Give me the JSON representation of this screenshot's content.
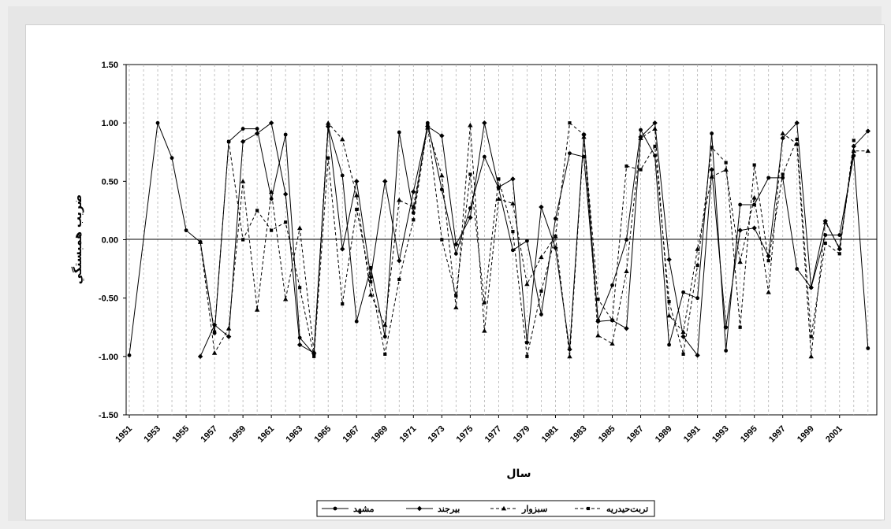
{
  "chart_data": {
    "type": "line",
    "title": "",
    "xlabel": "سال",
    "ylabel": "ضريب همبستگي",
    "xlim": [
      1951,
      2003
    ],
    "ylim": [
      -1.5,
      1.5
    ],
    "y_ticks": [
      "1.50",
      "1.00",
      "0.50",
      "0.00",
      "-0.50",
      "-1.00",
      "-1.50"
    ],
    "x_ticks": [
      "1951",
      "1953",
      "1955",
      "1957",
      "1959",
      "1961",
      "1963",
      "1965",
      "1967",
      "1969",
      "1971",
      "1973",
      "1975",
      "1977",
      "1979",
      "1981",
      "1983",
      "1985",
      "1987",
      "1989",
      "1991",
      "1993",
      "1995",
      "1997",
      "1999",
      "2001"
    ],
    "grid": "vertical dashed",
    "legend": "bottom-center",
    "series": [
      {
        "name": "مشهد",
        "marker": "circle",
        "dash": "solid",
        "x": [
          1951,
          1953,
          1954,
          1955,
          1956,
          1957,
          1958,
          1959,
          1960,
          1961,
          1962,
          1963,
          1964,
          1965,
          1966,
          1967,
          1968,
          1969,
          1970,
          1971,
          1972,
          1973,
          1974,
          1975,
          1976,
          1977,
          1978,
          1979,
          1980,
          1981,
          1982,
          1983,
          1984,
          1985,
          1986,
          1987,
          1988,
          1989,
          1990,
          1991,
          1992,
          1993,
          1994,
          1995,
          1996,
          1997,
          1998,
          1999,
          2000,
          2001,
          2002,
          2003
        ],
        "values": [
          -0.99,
          1.0,
          0.7,
          0.08,
          -0.02,
          -0.8,
          0.84,
          0.95,
          0.95,
          0.35,
          0.9,
          -0.84,
          -0.98,
          0.97,
          0.55,
          -0.7,
          -0.24,
          -0.83,
          0.92,
          0.23,
          1.0,
          0.43,
          -0.12,
          0.27,
          0.71,
          0.44,
          -0.09,
          -0.01,
          -0.64,
          0.18,
          0.74,
          0.71,
          -0.69,
          -0.39,
          0.0,
          0.94,
          0.72,
          -0.9,
          -0.45,
          -0.5,
          0.91,
          -0.95,
          0.3,
          0.3,
          0.53,
          0.53,
          -0.25,
          -0.41,
          0.04,
          0.04,
          0.72,
          -0.93
        ]
      },
      {
        "name": "بيرجند",
        "marker": "diamond",
        "dash": "solid",
        "x": [
          1956,
          1957,
          1958,
          1959,
          1960,
          1961,
          1962,
          1963,
          1964,
          1965,
          1966,
          1967,
          1968,
          1969,
          1970,
          1971,
          1972,
          1973,
          1974,
          1975,
          1976,
          1977,
          1978,
          1979,
          1980,
          1981,
          1982,
          1983,
          1984,
          1985,
          1986,
          1987,
          1988,
          1989,
          1990,
          1991,
          1992,
          1993,
          1994,
          1995,
          1996,
          1997,
          1998,
          1999,
          2000,
          2001,
          2002,
          2003
        ],
        "values": [
          -1.0,
          -0.73,
          -0.83,
          0.84,
          0.91,
          1.0,
          0.39,
          -0.9,
          -0.97,
          0.97,
          -0.08,
          0.5,
          -0.32,
          0.5,
          -0.18,
          0.41,
          0.97,
          0.89,
          -0.04,
          0.19,
          1.0,
          0.45,
          0.52,
          -0.88,
          0.28,
          -0.07,
          -0.94,
          0.9,
          -0.7,
          -0.69,
          -0.76,
          0.88,
          1.0,
          -0.17,
          -0.83,
          -0.99,
          0.6,
          -0.75,
          0.08,
          0.1,
          -0.14,
          0.87,
          1.0,
          -0.41,
          0.16,
          -0.08,
          0.8,
          0.93
        ]
      },
      {
        "name": "سبزوار",
        "marker": "triangle",
        "dash": "dashed",
        "x": [
          1956,
          1957,
          1958,
          1959,
          1960,
          1961,
          1962,
          1963,
          1964,
          1965,
          1966,
          1967,
          1968,
          1969,
          1970,
          1971,
          1972,
          1973,
          1974,
          1975,
          1976,
          1977,
          1978,
          1979,
          1980,
          1981,
          1982,
          1983,
          1984,
          1985,
          1986,
          1987,
          1988,
          1989,
          1990,
          1991,
          1992,
          1993,
          1994,
          1995,
          1996,
          1997,
          1998,
          1999,
          2000,
          2001,
          2002,
          2003
        ],
        "values": [
          -0.02,
          -0.97,
          -0.76,
          0.5,
          -0.6,
          0.41,
          -0.51,
          0.1,
          -0.96,
          1.0,
          0.86,
          0.38,
          -0.47,
          -0.73,
          0.34,
          0.28,
          0.96,
          0.55,
          -0.58,
          0.98,
          -0.78,
          0.35,
          0.31,
          -0.38,
          -0.15,
          0.03,
          -1.0,
          0.88,
          -0.82,
          -0.89,
          -0.27,
          0.87,
          0.95,
          -0.65,
          -0.79,
          -0.08,
          0.54,
          0.6,
          -0.19,
          0.36,
          -0.45,
          0.91,
          0.82,
          -1.0,
          0.15,
          -0.07,
          0.76,
          0.76
        ]
      },
      {
        "name": "تربت‌حيدريه",
        "marker": "square",
        "dash": "dashed",
        "x": [
          1956,
          1957,
          1958,
          1959,
          1960,
          1961,
          1962,
          1963,
          1964,
          1965,
          1966,
          1967,
          1968,
          1969,
          1970,
          1971,
          1972,
          1973,
          1974,
          1975,
          1976,
          1977,
          1978,
          1979,
          1980,
          1981,
          1982,
          1983,
          1984,
          1985,
          1986,
          1987,
          1988,
          1989,
          1990,
          1991,
          1992,
          1993,
          1994,
          1995,
          1996,
          1997,
          1998,
          1999,
          2000,
          2001,
          2002
        ],
        "values": [
          -0.02,
          -0.79,
          0.84,
          0.0,
          0.25,
          0.08,
          0.15,
          -0.41,
          -1.0,
          0.7,
          -0.55,
          0.26,
          -0.36,
          -0.98,
          -0.34,
          0.17,
          0.98,
          0.0,
          -0.48,
          0.56,
          -0.54,
          0.52,
          0.07,
          -1.0,
          -0.44,
          0.03,
          1.0,
          0.9,
          -0.51,
          -0.69,
          0.63,
          0.6,
          0.8,
          -0.53,
          -0.98,
          -0.22,
          0.79,
          0.66,
          -0.75,
          0.64,
          -0.18,
          0.56,
          0.86,
          -0.83,
          -0.03,
          -0.12,
          0.85
        ]
      }
    ]
  },
  "colors": {
    "line": "#000000",
    "grid": "#b3b3b3",
    "plot_bg": "#ffffff",
    "page_bg": "#e6e6e6"
  }
}
